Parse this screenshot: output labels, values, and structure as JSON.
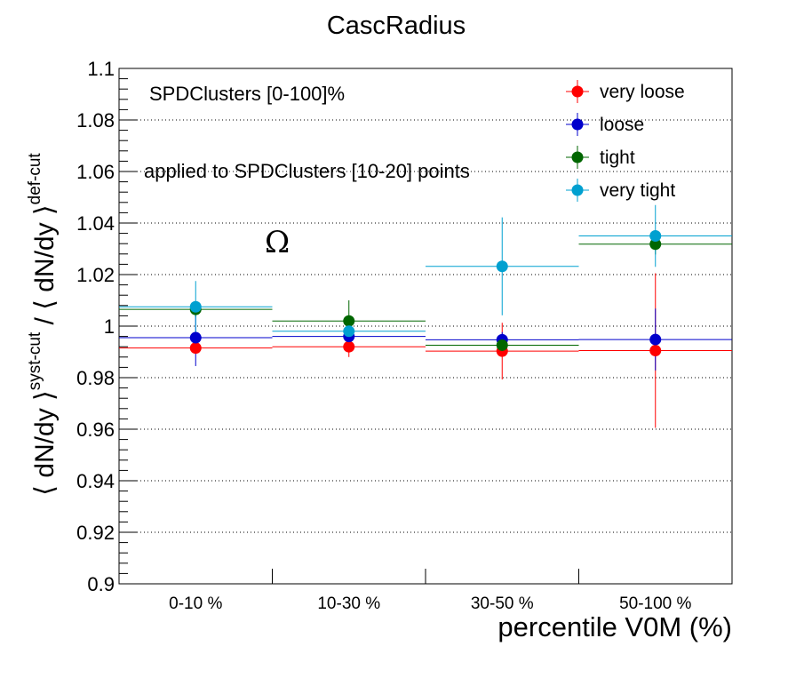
{
  "chart_data": {
    "type": "scatter",
    "title": "CascRadius",
    "xlabel": "percentile V0M (%)",
    "ylabel_parts": [
      "⟨ dN/dy ⟩",
      "syst-cut",
      " / ⟨ dN/dy ⟩",
      "def-cut"
    ],
    "categories": [
      "0-10 %",
      "10-30 %",
      "30-50 %",
      "50-100 %"
    ],
    "ylim": [
      0.9,
      1.1
    ],
    "yticks": [
      "0.9",
      "0.92",
      "0.94",
      "0.96",
      "0.98",
      "1",
      "1.02",
      "1.04",
      "1.06",
      "1.08",
      "1.1"
    ],
    "ytick_values": [
      0.9,
      0.92,
      0.94,
      0.96,
      0.98,
      1.0,
      1.02,
      1.04,
      1.06,
      1.08,
      1.1
    ],
    "grid": "horizontal dotted",
    "annotations": {
      "dataset": "SPDClusters [0-100]%",
      "applied": "applied to SPDClusters [10-20] points",
      "particle": "Ω"
    },
    "legend_position": "top-right",
    "series": [
      {
        "name": "very loose",
        "color": "#ff0000",
        "values": [
          0.9915,
          0.992,
          0.9903,
          0.9905
        ],
        "errors": [
          0.002,
          0.004,
          0.011,
          0.03
        ]
      },
      {
        "name": "loose",
        "color": "#0000cc",
        "values": [
          0.9955,
          0.996,
          0.9947,
          0.9948
        ],
        "errors": [
          0.011,
          0.004,
          0.003,
          0.012
        ]
      },
      {
        "name": "tight",
        "color": "#006600",
        "values": [
          1.0065,
          1.002,
          0.9926,
          1.0318
        ],
        "errors": [
          0.003,
          0.008,
          0.002,
          0.004
        ]
      },
      {
        "name": "very tight",
        "color": "#00a0d0",
        "values": [
          1.0075,
          0.998,
          1.0232,
          1.035
        ],
        "errors": [
          0.01,
          0.003,
          0.019,
          0.012
        ]
      }
    ]
  }
}
